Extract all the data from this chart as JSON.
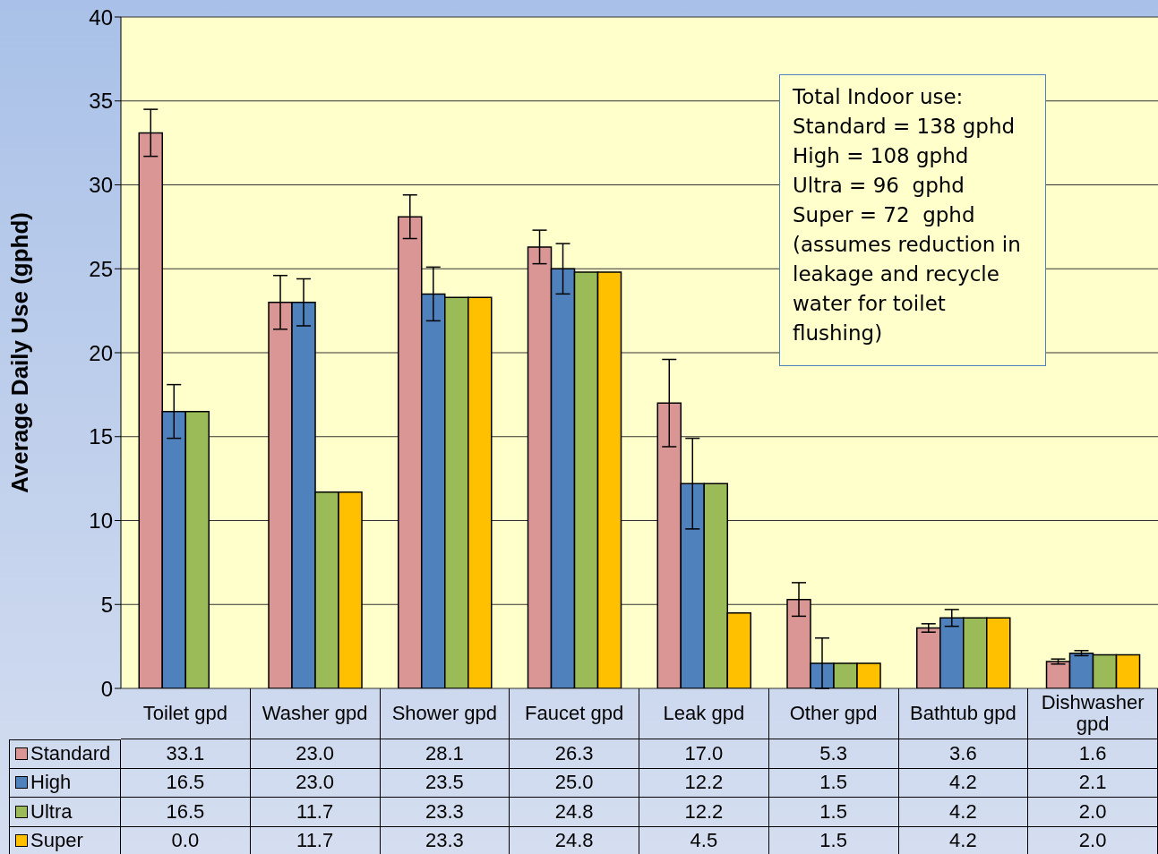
{
  "chart_data": {
    "type": "bar",
    "ylabel": "Average Daily Use (gphd)",
    "categories": [
      "Toilet gpd",
      "Washer gpd",
      "Shower gpd",
      "Faucet gpd",
      "Leak gpd",
      "Other gpd",
      "Bathtub gpd",
      "Dishwasher gpd"
    ],
    "series": [
      {
        "name": "Standard",
        "color": "#d99694",
        "values": [
          33.1,
          23.0,
          28.1,
          26.3,
          17.0,
          5.3,
          3.6,
          1.6
        ],
        "value_labels": [
          "33.1",
          "23.0",
          "28.1",
          "26.3",
          "17.0",
          "5.3",
          "3.6",
          "1.6"
        ],
        "errors": [
          1.4,
          1.6,
          1.3,
          1.0,
          2.6,
          1.0,
          0.25,
          0.15
        ]
      },
      {
        "name": "High",
        "color": "#4f81bd",
        "values": [
          16.5,
          23.0,
          23.5,
          25.0,
          12.2,
          1.5,
          4.2,
          2.1
        ],
        "value_labels": [
          "16.5",
          "23.0",
          "23.5",
          "25.0",
          "12.2",
          "1.5",
          "4.2",
          "2.1"
        ],
        "errors": [
          1.6,
          1.4,
          1.6,
          1.5,
          2.7,
          1.5,
          0.5,
          0.15
        ]
      },
      {
        "name": "Ultra",
        "color": "#9bbb59",
        "values": [
          16.5,
          11.7,
          23.3,
          24.8,
          12.2,
          1.5,
          4.2,
          2.0
        ],
        "value_labels": [
          "16.5",
          "11.7",
          "23.3",
          "24.8",
          "12.2",
          "1.5",
          "4.2",
          "2.0"
        ]
      },
      {
        "name": "Super",
        "color": "#ffc000",
        "values": [
          0.0,
          11.7,
          23.3,
          24.8,
          4.5,
          1.5,
          4.2,
          2.0
        ],
        "value_labels": [
          "0.0",
          "11.7",
          "23.3",
          "24.8",
          "4.5",
          "1.5",
          "4.2",
          "2.0"
        ]
      }
    ],
    "ylim": [
      0,
      40
    ],
    "yticks": [
      0,
      5,
      10,
      15,
      20,
      25,
      30,
      35,
      40
    ],
    "grid": "y",
    "legend": "bottom left",
    "annotations": [
      "Total Indoor use:\nStandard = 138 gphd\nHigh = 108 gphd\nUltra = 96  gphd\nSuper = 72  gphd\n(assumes reduction in\nleakage and recycle\nwater for toilet\nflushing)"
    ]
  }
}
